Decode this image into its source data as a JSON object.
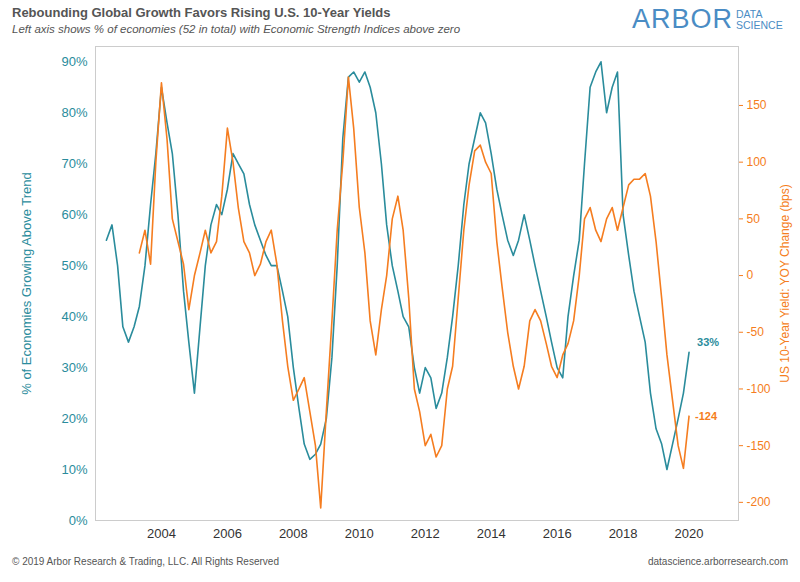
{
  "chart_data": {
    "type": "line",
    "title": "Rebounding Global Growth Favors Rising U.S. 10-Year Yields",
    "subtitle": "Left axis shows % of economies (52 in total) with Economic Strength Indices above zero",
    "logo": {
      "text": "ARBOR",
      "subtext": "DATA SCIENCE"
    },
    "source": "© 2019 Arbor Research & Trading, LLC. All Rights Reserved",
    "url": "datascience.arborresearch.com",
    "ylabel": "% of Economies Growing Above Trend",
    "y2label": "US 10-Year Yield: YOY Change (bps)",
    "grid": false,
    "x": [
      2002.33,
      2002.5,
      2002.67,
      2002.83,
      2003,
      2003.17,
      2003.33,
      2003.5,
      2003.67,
      2003.83,
      2004,
      2004.17,
      2004.33,
      2004.5,
      2004.67,
      2004.83,
      2005,
      2005.17,
      2005.33,
      2005.5,
      2005.67,
      2005.83,
      2006,
      2006.17,
      2006.33,
      2006.5,
      2006.67,
      2006.83,
      2007,
      2007.17,
      2007.33,
      2007.5,
      2007.67,
      2007.83,
      2008,
      2008.17,
      2008.33,
      2008.5,
      2008.67,
      2008.83,
      2009,
      2009.17,
      2009.33,
      2009.5,
      2009.67,
      2009.83,
      2010,
      2010.17,
      2010.33,
      2010.5,
      2010.67,
      2010.83,
      2011,
      2011.17,
      2011.33,
      2011.5,
      2011.67,
      2011.83,
      2012,
      2012.17,
      2012.33,
      2012.5,
      2012.67,
      2012.83,
      2013,
      2013.17,
      2013.33,
      2013.5,
      2013.67,
      2013.83,
      2014,
      2014.17,
      2014.33,
      2014.5,
      2014.67,
      2014.83,
      2015,
      2015.17,
      2015.33,
      2015.5,
      2015.67,
      2015.83,
      2016,
      2016.17,
      2016.33,
      2016.5,
      2016.67,
      2016.83,
      2017,
      2017.17,
      2017.33,
      2017.5,
      2017.67,
      2017.83,
      2018,
      2018.17,
      2018.33,
      2018.5,
      2018.67,
      2018.83,
      2019,
      2019.17,
      2019.33,
      2019.5,
      2019.67,
      2019.83,
      2020
    ],
    "series": [
      {
        "color": "#2a8c9c",
        "axis": "y",
        "values": [
          55,
          58,
          50,
          38,
          35,
          38,
          42,
          50,
          62,
          72,
          85,
          78,
          72,
          60,
          45,
          35,
          25,
          38,
          50,
          58,
          62,
          60,
          65,
          72,
          70,
          68,
          62,
          58,
          55,
          52,
          50,
          50,
          45,
          40,
          30,
          22,
          15,
          12,
          13,
          15,
          20,
          32,
          50,
          75,
          87,
          88,
          86,
          88,
          85,
          80,
          70,
          58,
          50,
          45,
          40,
          38,
          30,
          25,
          30,
          28,
          22,
          25,
          32,
          40,
          50,
          62,
          70,
          75,
          80,
          78,
          72,
          65,
          60,
          55,
          52,
          55,
          60,
          55,
          50,
          45,
          40,
          35,
          30,
          28,
          40,
          48,
          55,
          70,
          85,
          88,
          90,
          80,
          85,
          88,
          60,
          52,
          45,
          40,
          35,
          25,
          18,
          15,
          10,
          15,
          20,
          25,
          33
        ]
      },
      {
        "color": "#f57d20",
        "axis": "y2",
        "values": [
          null,
          null,
          null,
          null,
          null,
          null,
          20,
          40,
          10,
          100,
          170,
          120,
          50,
          30,
          10,
          -30,
          0,
          20,
          40,
          20,
          30,
          70,
          130,
          100,
          60,
          30,
          20,
          0,
          10,
          30,
          40,
          10,
          -40,
          -80,
          -110,
          -100,
          -90,
          -120,
          -150,
          -205,
          -120,
          -40,
          40,
          100,
          175,
          130,
          60,
          20,
          -40,
          -70,
          -30,
          0,
          50,
          70,
          40,
          -20,
          -100,
          -120,
          -150,
          -140,
          -160,
          -150,
          -100,
          -80,
          -20,
          40,
          80,
          110,
          115,
          100,
          90,
          30,
          -10,
          -50,
          -80,
          -100,
          -80,
          -40,
          -30,
          -40,
          -60,
          -80,
          -90,
          -70,
          -60,
          -40,
          0,
          50,
          60,
          40,
          30,
          50,
          60,
          40,
          60,
          80,
          85,
          85,
          90,
          70,
          30,
          -20,
          -70,
          -110,
          -150,
          -170,
          -124
        ]
      }
    ],
    "annotations": [
      {
        "text": "33%",
        "x": 2020,
        "y": 33,
        "axis": "y"
      },
      {
        "text": "-124",
        "x": 2020,
        "y": -124,
        "axis": "y2"
      }
    ],
    "xlim": [
      2002,
      2021.5
    ],
    "xticks": [
      2004,
      2006,
      2008,
      2010,
      2012,
      2014,
      2016,
      2018,
      2020
    ],
    "ylim": [
      0,
      93
    ],
    "yticks": [
      {
        "value": 0,
        "label": "0%"
      },
      {
        "value": 10,
        "label": "10%"
      },
      {
        "value": 20,
        "label": "20%"
      },
      {
        "value": 30,
        "label": "30%"
      },
      {
        "value": 40,
        "label": "40%"
      },
      {
        "value": 50,
        "label": "50%"
      },
      {
        "value": 60,
        "label": "60%"
      },
      {
        "value": 70,
        "label": "70%"
      },
      {
        "value": 80,
        "label": "80%"
      },
      {
        "value": 90,
        "label": "90%"
      }
    ],
    "y2lim": [
      -216,
      202
    ],
    "y2ticks": [
      -200,
      -150,
      -100,
      -50,
      0,
      50,
      100,
      150
    ]
  }
}
